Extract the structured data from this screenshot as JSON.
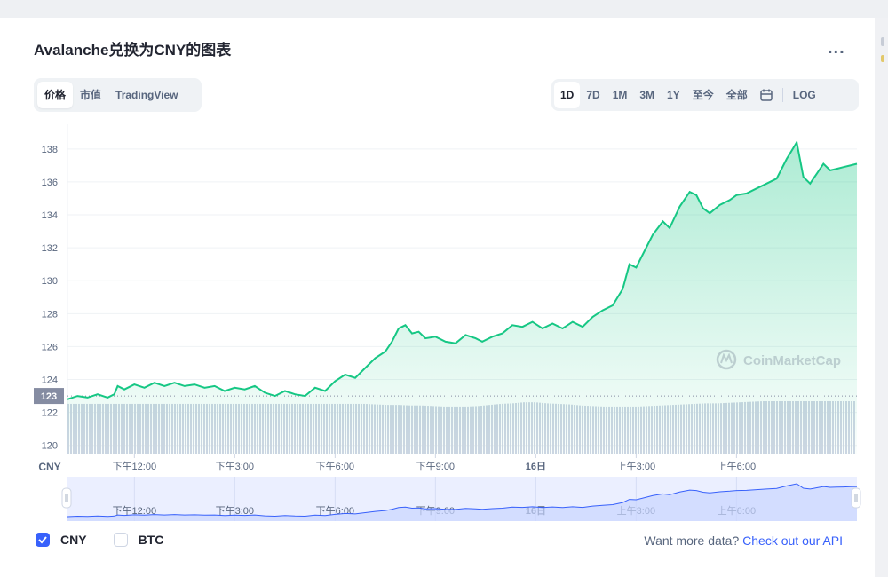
{
  "title": "Avalanche兑换为CNY的图表",
  "more_label": "...",
  "tabs": [
    {
      "label": "价格",
      "active": true
    },
    {
      "label": "市值",
      "active": false
    },
    {
      "label": "TradingView",
      "active": false
    }
  ],
  "ranges": {
    "items": [
      {
        "label": "1D",
        "active": true
      },
      {
        "label": "7D",
        "active": false
      },
      {
        "label": "1M",
        "active": false
      },
      {
        "label": "3M",
        "active": false
      },
      {
        "label": "1Y",
        "active": false
      },
      {
        "label": "至今",
        "active": false
      },
      {
        "label": "全部",
        "active": false
      }
    ],
    "calendar_icon": "calendar-icon",
    "log_label": "LOG"
  },
  "legend": {
    "cny_label": "CNY",
    "btc_label": "BTC",
    "cny_checked": true,
    "btc_checked": false
  },
  "api": {
    "prefix": "Want more data?",
    "link": "Check out our API"
  },
  "watermark": "CoinMarketCap",
  "colors": {
    "line": "#16c784",
    "area_top": "#16c784",
    "volume": "#cfd6e4",
    "nav_line": "#3861fb",
    "price_tag": "#858ca2",
    "accent": "#3861fb"
  },
  "chart_data": {
    "type": "line",
    "currency_label": "CNY",
    "y_ticks": [
      120,
      122,
      124,
      126,
      128,
      130,
      132,
      134,
      136,
      138
    ],
    "ylim": [
      119.5,
      139.5
    ],
    "x_ticks": [
      {
        "t": 2,
        "label": "下午12:00"
      },
      {
        "t": 5,
        "label": "下午3:00"
      },
      {
        "t": 8,
        "label": "下午6:00"
      },
      {
        "t": 11,
        "label": "下午9:00"
      },
      {
        "t": 14,
        "label": "16日"
      },
      {
        "t": 17,
        "label": "上午3:00"
      },
      {
        "t": 20,
        "label": "上午6:00"
      }
    ],
    "xlim": [
      0,
      23.6
    ],
    "current_price_label": "123",
    "current_price_line": 123,
    "series": [
      {
        "x": [
          0,
          0.3,
          0.6,
          0.9,
          1.2,
          1.4,
          1.5,
          1.7,
          2.0,
          2.3,
          2.6,
          2.9,
          3.2,
          3.5,
          3.8,
          4.1,
          4.4,
          4.7,
          5.0,
          5.3,
          5.6,
          5.9,
          6.2,
          6.5,
          6.8,
          7.1,
          7.4,
          7.7,
          8.0,
          8.3,
          8.6,
          8.9,
          9.2,
          9.5,
          9.7,
          9.9,
          10.1,
          10.3,
          10.5,
          10.7,
          11.0,
          11.3,
          11.6,
          11.9,
          12.2,
          12.4,
          12.7,
          13.0,
          13.3,
          13.6,
          13.9,
          14.2,
          14.5,
          14.8,
          15.1,
          15.4,
          15.7,
          16.0,
          16.3,
          16.6,
          16.8,
          17.0,
          17.2,
          17.5,
          17.8,
          18.0,
          18.3,
          18.6,
          18.8,
          19.0,
          19.2,
          19.5,
          19.8,
          20.0,
          20.3,
          20.6,
          20.9,
          21.2,
          21.5,
          21.8,
          22.0,
          22.2,
          22.3,
          22.4,
          22.6,
          22.8,
          23.0,
          23.2,
          23.4,
          23.6
        ],
        "values": [
          122.8,
          123.0,
          122.9,
          123.1,
          122.9,
          123.1,
          123.6,
          123.4,
          123.7,
          123.5,
          123.8,
          123.6,
          123.8,
          123.6,
          123.7,
          123.5,
          123.6,
          123.3,
          123.5,
          123.4,
          123.6,
          123.2,
          123.0,
          123.3,
          123.1,
          123.0,
          123.5,
          123.3,
          123.9,
          124.3,
          124.1,
          124.7,
          125.3,
          125.7,
          126.3,
          127.1,
          127.3,
          126.8,
          126.9,
          126.5,
          126.6,
          126.3,
          126.2,
          126.7,
          126.5,
          126.3,
          126.6,
          126.8,
          127.3,
          127.2,
          127.5,
          127.1,
          127.4,
          127.1,
          127.5,
          127.2,
          127.8,
          128.2,
          128.5,
          129.5,
          131.0,
          130.8,
          131.6,
          132.8,
          133.6,
          133.2,
          134.5,
          135.4,
          135.2,
          134.4,
          134.1,
          134.6,
          134.9,
          135.2,
          135.3,
          135.6,
          135.9,
          136.2,
          137.4,
          138.4,
          136.3,
          135.9,
          136.2,
          136.5,
          137.1,
          136.7,
          136.8,
          136.9,
          137.0,
          137.1
        ]
      }
    ],
    "volume_level": [
      0.95,
      0.95,
      0.95,
      0.95,
      0.95,
      0.95,
      0.95,
      0.95,
      0.95,
      0.95,
      0.95,
      0.95,
      0.95,
      0.95,
      0.95,
      0.95,
      0.95,
      0.95,
      0.95,
      0.95,
      0.95,
      0.95,
      0.95,
      0.95,
      0.95,
      0.95,
      0.95,
      0.94,
      0.93,
      0.93,
      0.92,
      0.92,
      0.91,
      0.9,
      0.9,
      0.9,
      0.91,
      0.93,
      0.95,
      0.96,
      0.98,
      0.98,
      0.96,
      0.95,
      0.94,
      0.92,
      0.91,
      0.9,
      0.9,
      0.9,
      0.9,
      0.91,
      0.92,
      0.93,
      0.94,
      0.95,
      0.96,
      0.96,
      0.97,
      0.98,
      0.99,
      1.0,
      1.0,
      1.0,
      1.0,
      1.0,
      1.0,
      1.0,
      1.0,
      1.0
    ]
  }
}
